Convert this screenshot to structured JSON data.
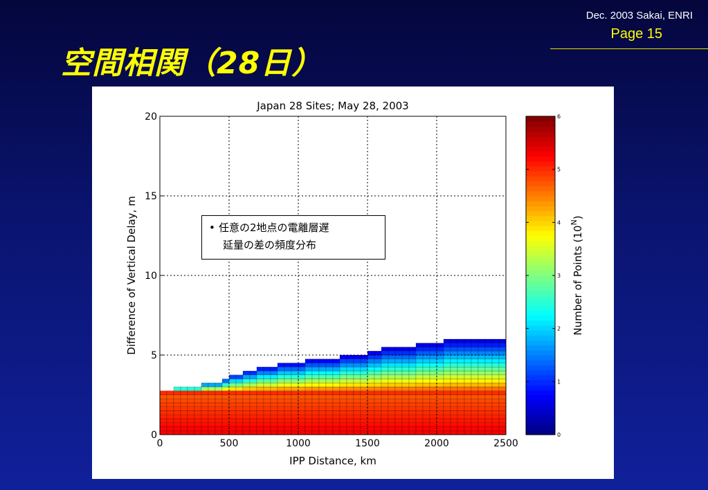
{
  "slide": {
    "title": "空間相関（28日）",
    "credit": "Dec. 2003 Sakai, ENRI",
    "page": "Page 15"
  },
  "note": {
    "bullet": "•",
    "line1": "任意の2地点の電離層遅",
    "line2": "延量の差の頻度分布"
  },
  "chart_data": {
    "type": "heatmap",
    "title": "Japan 28 Sites; May 28, 2003",
    "xlabel": "IPP Distance, km",
    "ylabel": "Difference of Vertical Delay, m",
    "xlim": [
      0,
      2500
    ],
    "ylim": [
      0,
      20
    ],
    "xticks": [
      0,
      500,
      1000,
      1500,
      2000,
      2500
    ],
    "yticks": [
      0,
      5,
      10,
      15,
      20
    ],
    "grid": true,
    "bin_width_km": 50,
    "bin_height_m": 0.25,
    "max_delay_per_bin_m": [
      2.75,
      2.75,
      3.0,
      3.0,
      3.0,
      3.0,
      3.25,
      3.25,
      3.25,
      3.5,
      3.75,
      3.75,
      4.0,
      4.0,
      4.25,
      4.25,
      4.25,
      4.5,
      4.5,
      4.5,
      4.5,
      4.75,
      4.75,
      4.75,
      4.75,
      4.75,
      5.0,
      5.0,
      5.0,
      5.0,
      5.25,
      5.25,
      5.5,
      5.5,
      5.5,
      5.5,
      5.5,
      5.75,
      5.75,
      5.75,
      5.75,
      6.0,
      6.0,
      6.0,
      6.0,
      6.0,
      6.0,
      6.0,
      6.0,
      6.0
    ],
    "colorbar": {
      "label": "Number of Points (10^N)",
      "label_base": "Number of Points (10",
      "label_sup": "N",
      "label_end": ")",
      "ticks": [
        0,
        1,
        2,
        3,
        4,
        5,
        6
      ],
      "range": [
        0,
        6
      ],
      "colormap": "jet"
    }
  }
}
